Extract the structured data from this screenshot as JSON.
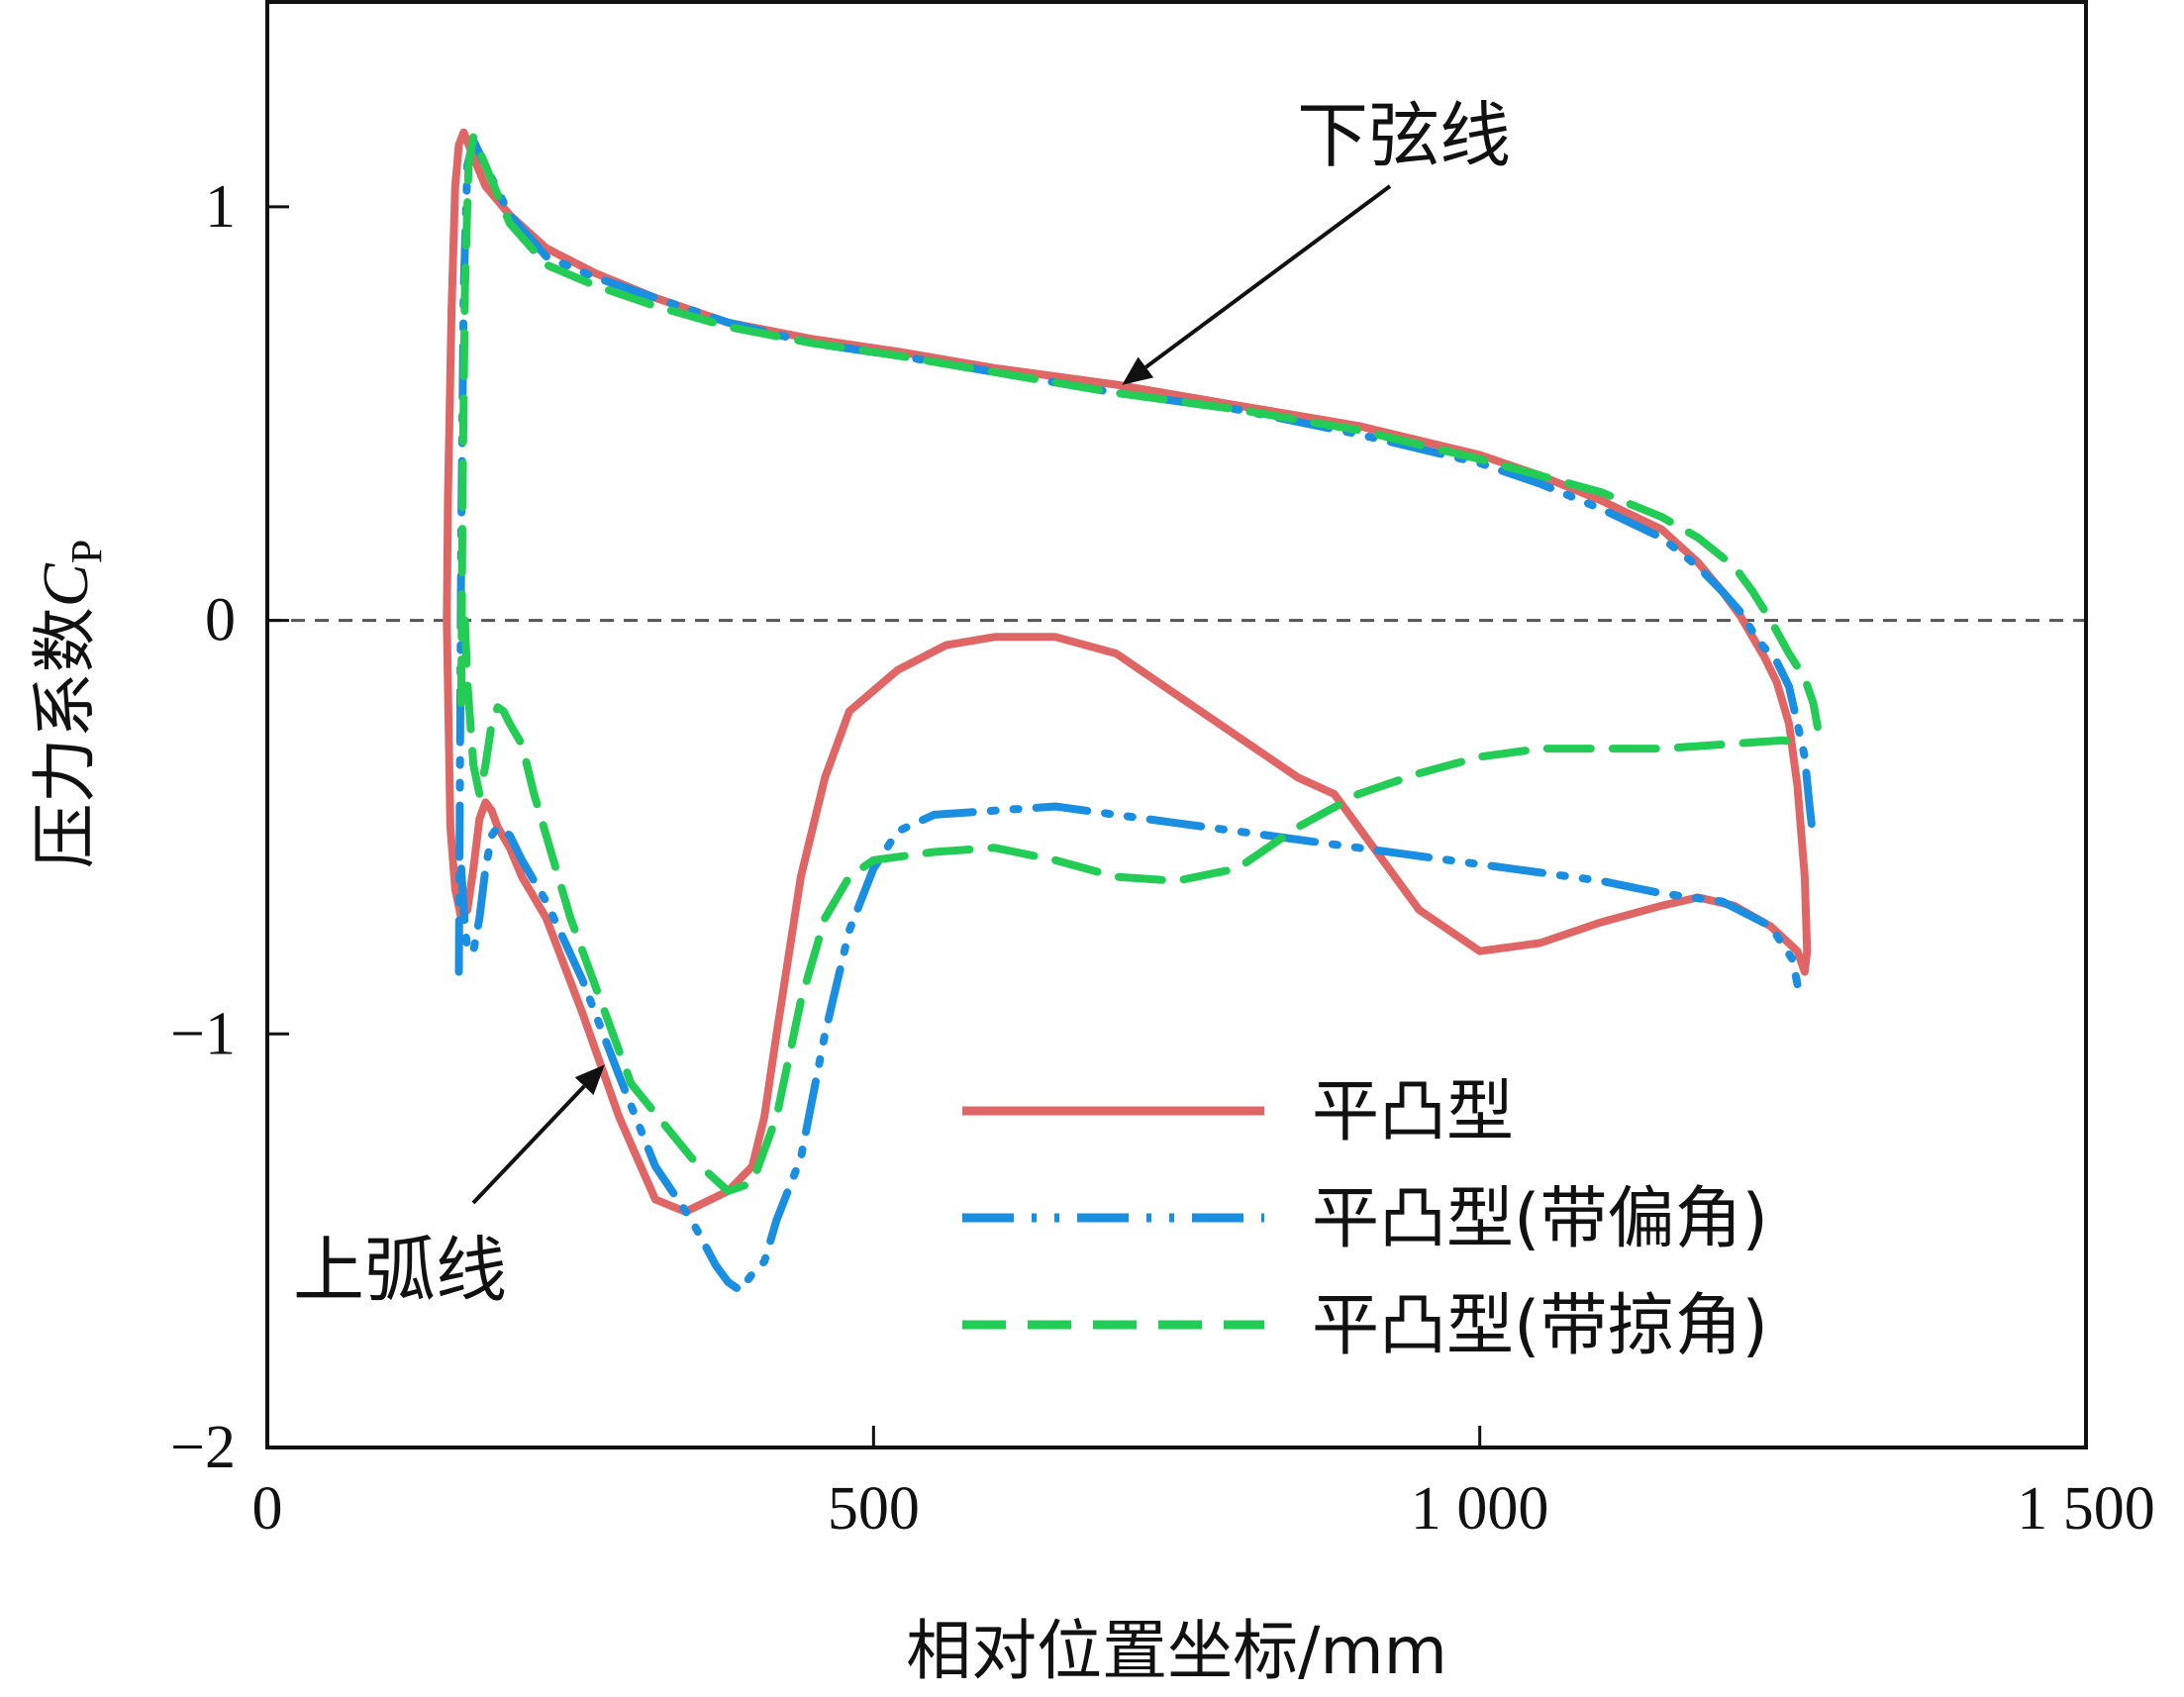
{
  "chart_data": {
    "type": "line",
    "title": "",
    "xlabel": "相对位置坐标/mm",
    "ylabel_main": "压力系数",
    "ylabel_symbol": "C",
    "ylabel_sub": "P",
    "xlim": [
      0,
      1500
    ],
    "ylim": [
      -2,
      1.5
    ],
    "xticks": [
      {
        "value": 0,
        "label": "0"
      },
      {
        "value": 500,
        "label": "500"
      },
      {
        "value": 1000,
        "label": "1 000"
      },
      {
        "value": 1500,
        "label": "1 500"
      }
    ],
    "yticks": [
      {
        "value": 1,
        "label": "1"
      },
      {
        "value": 0,
        "label": "0"
      },
      {
        "value": -1,
        "label": "−1"
      },
      {
        "value": -2,
        "label": "−2"
      }
    ],
    "reference_line": {
      "y": 0,
      "style": "dashed"
    },
    "legend_position": "bottom-right",
    "annotations": [
      {
        "text": "下弦线",
        "arrow_to": {
          "x": 700,
          "y": 0.55
        }
      },
      {
        "text": "上弧线",
        "arrow_to": {
          "x": 275,
          "y": -1.06
        }
      }
    ],
    "series": [
      {
        "name": "平凸型",
        "color": "#e06666",
        "style": "solid",
        "lower": {
          "x": [
            148,
            149,
            152,
            155,
            158,
            162,
            170,
            180,
            200,
            230,
            270,
            320,
            380,
            450,
            520,
            600,
            700,
            800,
            900,
            1000,
            1050,
            1100,
            1150,
            1180,
            1200,
            1215,
            1225,
            1235,
            1245,
            1255,
            1262,
            1268,
            1270
          ],
          "y": [
            0,
            0.3,
            0.75,
            1.05,
            1.15,
            1.18,
            1.12,
            1.05,
            0.98,
            0.9,
            0.84,
            0.78,
            0.72,
            0.68,
            0.65,
            0.61,
            0.57,
            0.52,
            0.47,
            0.4,
            0.35,
            0.29,
            0.22,
            0.14,
            0.07,
            0.01,
            -0.04,
            -0.09,
            -0.15,
            -0.25,
            -0.4,
            -0.62,
            -0.8
          ]
        },
        "upper": {
          "x": [
            148,
            151,
            155,
            160,
            165,
            170,
            175,
            180,
            185,
            190,
            200,
            210,
            230,
            260,
            290,
            320,
            345,
            380,
            400,
            410,
            420,
            440,
            460,
            480,
            520,
            560,
            600,
            650,
            700,
            750,
            800,
            850,
            880,
            900,
            950,
            1000,
            1050,
            1100,
            1150,
            1180,
            1210,
            1240,
            1262,
            1268,
            1270
          ],
          "y": [
            0,
            -0.5,
            -0.65,
            -0.72,
            -0.7,
            -0.6,
            -0.48,
            -0.44,
            -0.46,
            -0.5,
            -0.55,
            -0.62,
            -0.72,
            -0.95,
            -1.2,
            -1.4,
            -1.43,
            -1.38,
            -1.32,
            -1.2,
            -1.0,
            -0.62,
            -0.38,
            -0.22,
            -0.12,
            -0.06,
            -0.04,
            -0.04,
            -0.08,
            -0.18,
            -0.28,
            -0.38,
            -0.42,
            -0.5,
            -0.7,
            -0.8,
            -0.78,
            -0.73,
            -0.69,
            -0.67,
            -0.69,
            -0.74,
            -0.8,
            -0.85,
            -0.8
          ]
        }
      },
      {
        "name": "平凸型(带偏角)",
        "color": "#1a8ee0",
        "style": "dash-dot-dot",
        "lower": {
          "x": [
            158,
            160,
            162,
            165,
            170,
            180,
            200,
            230,
            270,
            320,
            380,
            450,
            520,
            600,
            700,
            800,
            900,
            1000,
            1050,
            1100,
            1150,
            1180,
            1200,
            1215,
            1230,
            1245,
            1255,
            1262,
            1268,
            1272,
            1274
          ],
          "y": [
            -0.85,
            0.2,
            0.8,
            1.1,
            1.16,
            1.1,
            0.98,
            0.88,
            0.83,
            0.78,
            0.72,
            0.67,
            0.64,
            0.6,
            0.55,
            0.51,
            0.45,
            0.38,
            0.33,
            0.27,
            0.2,
            0.13,
            0.07,
            0.02,
            -0.05,
            -0.1,
            -0.16,
            -0.25,
            -0.33,
            -0.45,
            -0.5
          ]
        },
        "upper": {
          "x": [
            160,
            162,
            165,
            170,
            175,
            180,
            185,
            190,
            200,
            210,
            230,
            260,
            290,
            320,
            350,
            370,
            380,
            390,
            400,
            410,
            420,
            440,
            460,
            480,
            500,
            520,
            550,
            600,
            650,
            700,
            750,
            800,
            900,
            1000,
            1100,
            1150,
            1200,
            1240,
            1258,
            1262
          ],
          "y": [
            -0.6,
            -0.7,
            -0.8,
            -0.8,
            -0.72,
            -0.6,
            -0.52,
            -0.5,
            -0.52,
            -0.58,
            -0.68,
            -0.87,
            -1.1,
            -1.32,
            -1.45,
            -1.56,
            -1.6,
            -1.62,
            -1.58,
            -1.55,
            -1.45,
            -1.3,
            -1.0,
            -0.75,
            -0.6,
            -0.51,
            -0.47,
            -0.46,
            -0.45,
            -0.47,
            -0.49,
            -0.51,
            -0.55,
            -0.59,
            -0.63,
            -0.66,
            -0.68,
            -0.74,
            -0.82,
            -0.88
          ]
        }
      },
      {
        "name": "平凸型(带掠角)",
        "color": "#22cc55",
        "style": "dashed",
        "lower": {
          "x": [
            160,
            161,
            163,
            166,
            170,
            180,
            200,
            230,
            270,
            320,
            380,
            450,
            520,
            600,
            700,
            800,
            900,
            1000,
            1050,
            1100,
            1150,
            1180,
            1210,
            1225,
            1240,
            1255,
            1268,
            1275,
            1280
          ],
          "y": [
            -0.2,
            0.3,
            0.8,
            1.1,
            1.17,
            1.1,
            0.96,
            0.86,
            0.81,
            0.76,
            0.71,
            0.67,
            0.64,
            0.6,
            0.55,
            0.51,
            0.46,
            0.39,
            0.35,
            0.31,
            0.25,
            0.2,
            0.13,
            0.07,
            0.0,
            -0.08,
            -0.14,
            -0.2,
            -0.28
          ]
        },
        "upper": {
          "x": [
            163,
            165,
            170,
            175,
            180,
            185,
            190,
            195,
            200,
            210,
            220,
            250,
            300,
            350,
            380,
            400,
            420,
            440,
            460,
            480,
            500,
            550,
            600,
            650,
            700,
            750,
            800,
            850,
            900,
            950,
            1000,
            1050,
            1100,
            1150,
            1200,
            1250,
            1268
          ],
          "y": [
            0,
            -0.15,
            -0.35,
            -0.42,
            -0.35,
            -0.25,
            -0.21,
            -0.22,
            -0.25,
            -0.3,
            -0.42,
            -0.72,
            -1.12,
            -1.3,
            -1.38,
            -1.36,
            -1.2,
            -0.92,
            -0.72,
            -0.62,
            -0.58,
            -0.56,
            -0.55,
            -0.58,
            -0.62,
            -0.63,
            -0.6,
            -0.5,
            -0.42,
            -0.37,
            -0.33,
            -0.31,
            -0.31,
            -0.31,
            -0.3,
            -0.29,
            -0.3
          ]
        }
      }
    ]
  }
}
